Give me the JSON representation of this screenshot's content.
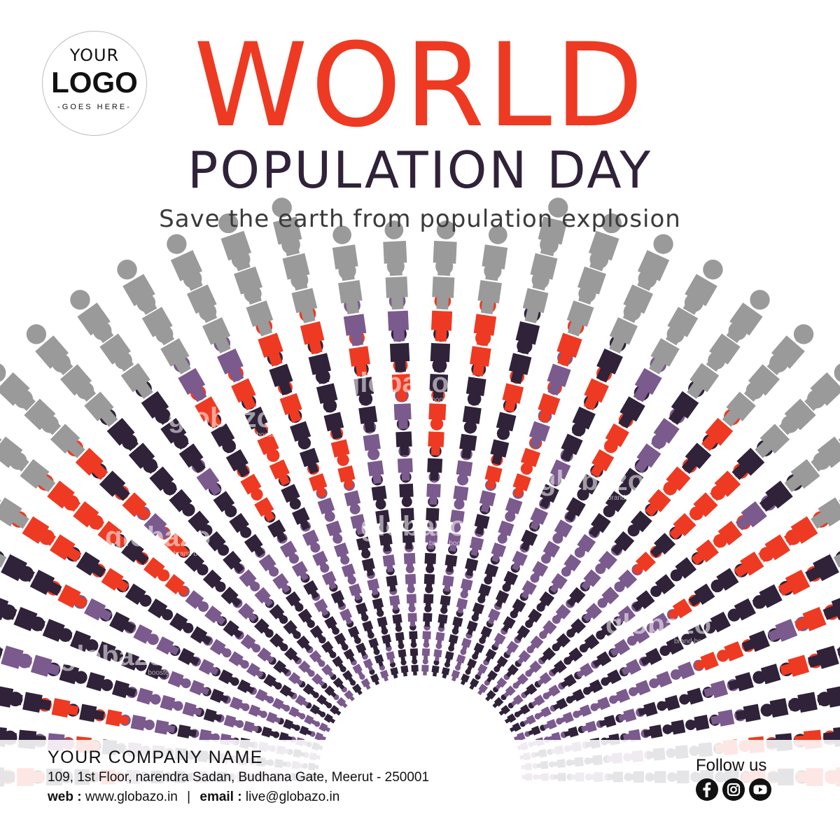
{
  "logo": {
    "line1": "YOUR",
    "line2": "LOGO",
    "line3": "-GOES HERE-"
  },
  "heading": {
    "word1": "WORLD",
    "word2": "POPULATION DAY",
    "tagline": "Save the earth from population explosion"
  },
  "watermark": {
    "brand": "globazo",
    "sub": "brand booster"
  },
  "colors": {
    "accent": "#ee3a22",
    "dark": "#2f2239",
    "purple": "#7b5a8e",
    "grey": "#9a9a9a"
  },
  "footer": {
    "company": "YOUR COMPANY NAME",
    "address": "109, 1st Floor, narendra Sadan, Budhana Gate, Meerut - 250001",
    "web_label": "web :",
    "web": "www.globazo.in",
    "separator": "|",
    "email_label": "email :",
    "email": "live@globazo.in",
    "follow": "Follow us"
  },
  "social_icons": [
    "facebook-icon",
    "instagram-icon",
    "youtube-icon"
  ]
}
